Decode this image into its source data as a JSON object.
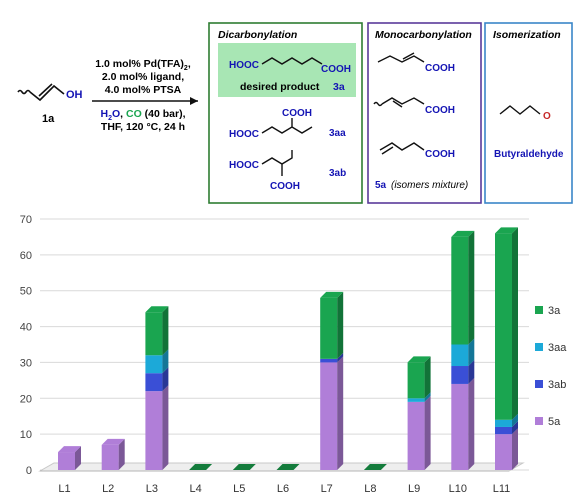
{
  "scheme": {
    "substrate_oh": "OH",
    "substrate_id": "1a",
    "conditions": {
      "cat_prefix": "1.0 mol% Pd(TFA)",
      "cat_sub": "2",
      "cat_suffix": ",",
      "ligand": "2.0 mol% ligand,",
      "acid": "4.0 mol% PTSA",
      "h2o_h": "H",
      "h2o_sub": "2",
      "h2o_o": "O",
      "co": "CO",
      "pressure": "(40 bar),",
      "solvent_temp": "THF, 120 °C, 24 h"
    },
    "boxes": {
      "dicarbonylation": {
        "title": "Dicarbonylation",
        "hooc": "HOOC",
        "cooh": "COOH",
        "desired": "desired product",
        "id_3a": "3a",
        "id_3aa": "3aa",
        "id_3ab": "3ab",
        "color": "#2e7d32",
        "highlight": "#a8e6b4"
      },
      "monocarbonylation": {
        "title": "Monocarbonylation",
        "cooh": "COOH",
        "id_5a": "5a",
        "note": "(isomers mixture)",
        "color": "#5a3a9a"
      },
      "isomerization": {
        "title": "Isomerization",
        "o": "O",
        "name": "Butyraldehyde",
        "color": "#3a86c8"
      }
    }
  },
  "chart_data": {
    "type": "bar",
    "stacked": true,
    "categories": [
      "L1",
      "L2",
      "L3",
      "L4",
      "L5",
      "L6",
      "L7",
      "L8",
      "L9",
      "L10",
      "L11"
    ],
    "series": [
      {
        "name": "5a",
        "color": "#b07ed8",
        "values": [
          5,
          7,
          22,
          0,
          0,
          0,
          30,
          0,
          19,
          24,
          10
        ]
      },
      {
        "name": "3ab",
        "color": "#3a4fd6",
        "values": [
          0,
          0,
          5,
          0,
          0,
          0,
          1,
          0,
          0,
          5,
          2
        ]
      },
      {
        "name": "3aa",
        "color": "#1ca9d8",
        "values": [
          0,
          0,
          5,
          0,
          0,
          0,
          0,
          0,
          1,
          6,
          2
        ]
      },
      {
        "name": "3a",
        "color": "#1aa550",
        "values": [
          0,
          0,
          12,
          0,
          0,
          0,
          17,
          0,
          10,
          30,
          52
        ]
      }
    ],
    "ylim": [
      0,
      70
    ],
    "yticks": [
      0,
      10,
      20,
      30,
      40,
      50,
      60,
      70
    ],
    "legend_position": "right",
    "grid": true
  }
}
